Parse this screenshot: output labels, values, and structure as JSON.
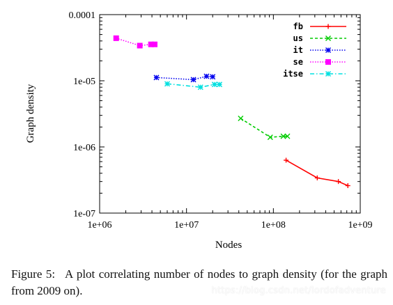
{
  "chart_data": {
    "type": "line",
    "xscale": "log",
    "yscale": "log",
    "xlim": [
      1000000,
      1000000000
    ],
    "ylim": [
      1e-07,
      0.0001
    ],
    "x_ticks": [
      "1e+06",
      "1e+07",
      "1e+08",
      "1e+09"
    ],
    "y_ticks": [
      "0.0001",
      "1e-05",
      "1e-06",
      "1e-07"
    ],
    "xlabel": "Nodes",
    "ylabel": "Graph density",
    "legend_position": "top-right",
    "series": [
      {
        "name": "fb",
        "color": "#ff0000",
        "style": "solid",
        "marker": "plus",
        "points": [
          [
            140000000,
            6.3e-07
          ],
          [
            320000000,
            3.4e-07
          ],
          [
            560000000,
            3e-07
          ],
          [
            720000000,
            2.6e-07
          ]
        ]
      },
      {
        "name": "us",
        "color": "#00cc00",
        "style": "dashed",
        "marker": "x",
        "points": [
          [
            42000000,
            2.7e-06
          ],
          [
            92000000,
            1.4e-06
          ],
          [
            130000000,
            1.45e-06
          ],
          [
            145000000,
            1.45e-06
          ]
        ]
      },
      {
        "name": "it",
        "color": "#0000ee",
        "style": "dotted",
        "marker": "asterisk",
        "points": [
          [
            4500000,
            1.12e-05
          ],
          [
            12000000,
            1.04e-05
          ],
          [
            17000000,
            1.17e-05
          ],
          [
            20000000,
            1.15e-05
          ]
        ]
      },
      {
        "name": "se",
        "color": "#ff00ff",
        "style": "dotted",
        "marker": "square",
        "points": [
          [
            1550000,
            4.4e-05
          ],
          [
            2900000,
            3.4e-05
          ],
          [
            3900000,
            3.55e-05
          ],
          [
            4300000,
            3.55e-05
          ]
        ]
      },
      {
        "name": "itse",
        "color": "#00e0e0",
        "style": "dashdot",
        "marker": "asterisk",
        "points": [
          [
            6000000,
            9e-06
          ],
          [
            14500000,
            8e-06
          ],
          [
            21000000,
            8.8e-06
          ],
          [
            24000000,
            8.8e-06
          ]
        ]
      }
    ]
  },
  "caption": {
    "label": "Figure 5:",
    "text": "A plot correlating number of nodes to graph density (for the graph from 2009 on)."
  },
  "watermark": "https://blog.csdn.net/lordofadventure"
}
